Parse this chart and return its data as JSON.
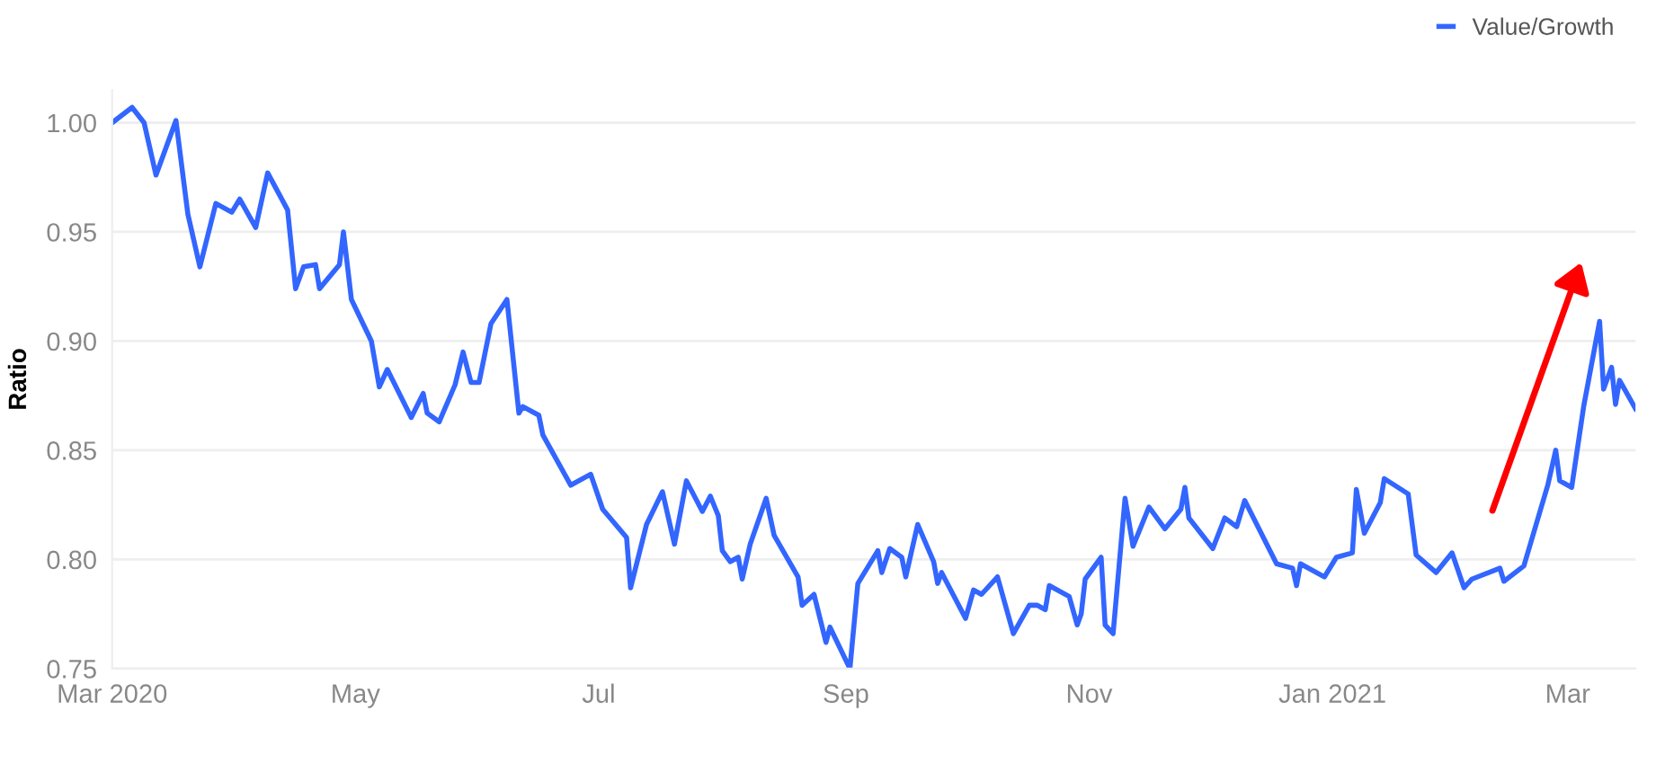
{
  "chart_data": {
    "type": "line",
    "ylabel": "Ratio",
    "legend": "top right",
    "grid": "y",
    "marker": "none",
    "line_style": "solid",
    "x": [
      "2020-03-01",
      "2020-03-06",
      "2020-03-09",
      "2020-03-12",
      "2020-03-17",
      "2020-03-20",
      "2020-03-23",
      "2020-03-27",
      "2020-03-31",
      "2020-04-02",
      "2020-04-06",
      "2020-04-09",
      "2020-04-14",
      "2020-04-16",
      "2020-04-18",
      "2020-04-21",
      "2020-04-22",
      "2020-04-27",
      "2020-04-28",
      "2020-04-30",
      "2020-05-05",
      "2020-05-07",
      "2020-05-09",
      "2020-05-15",
      "2020-05-18",
      "2020-05-19",
      "2020-05-22",
      "2020-05-26",
      "2020-05-28",
      "2020-05-30",
      "2020-06-01",
      "2020-06-04",
      "2020-06-08",
      "2020-06-11",
      "2020-06-12",
      "2020-06-16",
      "2020-06-17",
      "2020-06-24",
      "2020-06-29",
      "2020-07-02",
      "2020-07-08",
      "2020-07-09",
      "2020-07-13",
      "2020-07-17",
      "2020-07-20",
      "2020-07-23",
      "2020-07-27",
      "2020-07-29",
      "2020-07-31",
      "2020-08-01",
      "2020-08-03",
      "2020-08-05",
      "2020-08-06",
      "2020-08-08",
      "2020-08-12",
      "2020-08-14",
      "2020-08-20",
      "2020-08-21",
      "2020-08-24",
      "2020-08-27",
      "2020-08-28",
      "2020-09-02",
      "2020-09-04",
      "2020-09-09",
      "2020-09-10",
      "2020-09-12",
      "2020-09-15",
      "2020-09-16",
      "2020-09-19",
      "2020-09-23",
      "2020-09-24",
      "2020-09-25",
      "2020-10-01",
      "2020-10-03",
      "2020-10-05",
      "2020-10-09",
      "2020-10-13",
      "2020-10-17",
      "2020-10-19",
      "2020-10-21",
      "2020-10-22",
      "2020-10-27",
      "2020-10-29",
      "2020-10-30",
      "2020-10-31",
      "2020-11-04",
      "2020-11-05",
      "2020-11-07",
      "2020-11-10",
      "2020-11-12",
      "2020-11-16",
      "2020-11-20",
      "2020-11-24",
      "2020-11-25",
      "2020-11-26",
      "2020-12-02",
      "2020-12-05",
      "2020-12-08",
      "2020-12-10",
      "2020-12-18",
      "2020-12-22",
      "2020-12-23",
      "2020-12-24",
      "2020-12-30",
      "2021-01-02",
      "2021-01-06",
      "2021-01-07",
      "2021-01-09",
      "2021-01-13",
      "2021-01-14",
      "2021-01-20",
      "2021-01-22",
      "2021-01-27",
      "2021-01-31",
      "2021-02-03",
      "2021-02-05",
      "2021-02-12",
      "2021-02-13",
      "2021-02-18",
      "2021-02-24",
      "2021-02-26",
      "2021-02-27",
      "2021-03-02",
      "2021-03-05",
      "2021-03-09",
      "2021-03-10",
      "2021-03-12",
      "2021-03-13",
      "2021-03-14",
      "2021-03-18"
    ],
    "series": [
      {
        "name": "Value/Growth",
        "color": "#3366ff",
        "values": [
          1.0,
          1.007,
          1.0,
          0.976,
          1.001,
          0.958,
          0.934,
          0.963,
          0.959,
          0.965,
          0.952,
          0.977,
          0.96,
          0.924,
          0.934,
          0.935,
          0.924,
          0.935,
          0.95,
          0.919,
          0.9,
          0.879,
          0.887,
          0.865,
          0.876,
          0.867,
          0.863,
          0.88,
          0.895,
          0.881,
          0.881,
          0.908,
          0.919,
          0.867,
          0.87,
          0.866,
          0.857,
          0.834,
          0.839,
          0.823,
          0.81,
          0.787,
          0.816,
          0.831,
          0.807,
          0.836,
          0.822,
          0.829,
          0.82,
          0.804,
          0.799,
          0.801,
          0.791,
          0.807,
          0.828,
          0.811,
          0.792,
          0.779,
          0.784,
          0.762,
          0.769,
          0.75,
          0.789,
          0.804,
          0.794,
          0.805,
          0.801,
          0.792,
          0.816,
          0.799,
          0.789,
          0.794,
          0.773,
          0.786,
          0.784,
          0.792,
          0.766,
          0.779,
          0.779,
          0.777,
          0.788,
          0.783,
          0.77,
          0.775,
          0.791,
          0.801,
          0.77,
          0.766,
          0.828,
          0.806,
          0.824,
          0.814,
          0.823,
          0.833,
          0.819,
          0.805,
          0.819,
          0.815,
          0.827,
          0.798,
          0.796,
          0.788,
          0.798,
          0.792,
          0.801,
          0.803,
          0.832,
          0.812,
          0.826,
          0.837,
          0.83,
          0.802,
          0.794,
          0.803,
          0.787,
          0.791,
          0.796,
          0.79,
          0.797,
          0.834,
          0.85,
          0.836,
          0.833,
          0.87,
          0.909,
          0.878,
          0.888,
          0.871,
          0.882,
          0.869
        ]
      }
    ],
    "xlim": [
      "2020-03-01",
      "2021-03-18"
    ],
    "xticks": [
      {
        "value": "2020-03-01",
        "label": "Mar 2020"
      },
      {
        "value": "2020-05-01",
        "label": "May"
      },
      {
        "value": "2020-07-01",
        "label": "Jul"
      },
      {
        "value": "2020-09-01",
        "label": "Sep"
      },
      {
        "value": "2020-11-01",
        "label": "Nov"
      },
      {
        "value": "2021-01-01",
        "label": "Jan 2021"
      },
      {
        "value": "2021-03-01",
        "label": "Mar"
      }
    ],
    "ylim": [
      0.75,
      1.015
    ],
    "yticks": [
      {
        "value": 0.75,
        "label": "0.75"
      },
      {
        "value": 0.8,
        "label": "0.80"
      },
      {
        "value": 0.85,
        "label": "0.85"
      },
      {
        "value": 0.9,
        "label": "0.90"
      },
      {
        "value": 0.95,
        "label": "0.95"
      },
      {
        "value": 1.0,
        "label": "1.00"
      }
    ]
  }
}
